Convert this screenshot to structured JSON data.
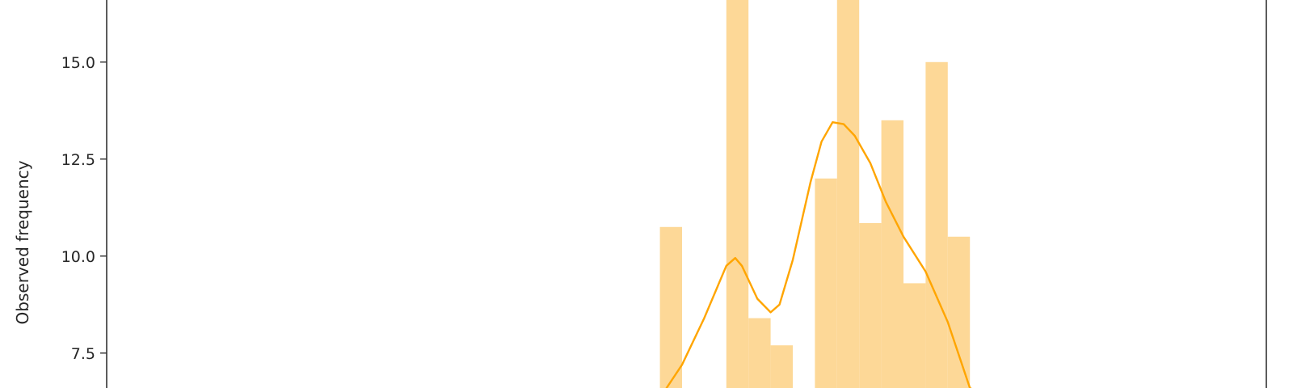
{
  "chart_data": {
    "type": "bar",
    "ylabel": "Observed frequency",
    "xlabel": "",
    "title": "",
    "ylim": [
      6.6,
      16.6
    ],
    "yticks": [
      7.5,
      10.0,
      12.5,
      15.0
    ],
    "ytick_labels": [
      "7.5",
      "10.0",
      "12.5",
      "15.0"
    ],
    "bar_color": "#fdd897",
    "line_color": "#ffa500",
    "histogram": {
      "bin_index": [
        0,
        1,
        2,
        3,
        4,
        5,
        6,
        7,
        8,
        9,
        10,
        11,
        12,
        13,
        14
      ],
      "values": [
        10.75,
        0,
        0,
        18.0,
        8.4,
        7.7,
        0,
        12.0,
        18.0,
        10.85,
        13.5,
        9.3,
        15.0,
        10.5,
        0
      ]
    },
    "density_curve": {
      "bin_position": [
        0.3,
        1.0,
        2.0,
        3.0,
        3.4,
        3.7,
        4.4,
        5.0,
        5.4,
        6.0,
        6.8,
        7.3,
        7.8,
        8.3,
        8.8,
        9.5,
        10.2,
        11.0,
        12.0,
        13.0,
        14.0,
        15.0
      ],
      "values": [
        6.6,
        7.2,
        8.4,
        9.75,
        9.95,
        9.75,
        8.9,
        8.55,
        8.75,
        9.9,
        11.9,
        12.95,
        13.45,
        13.4,
        13.1,
        12.4,
        11.4,
        10.5,
        9.6,
        8.3,
        6.6,
        6.3
      ]
    }
  }
}
